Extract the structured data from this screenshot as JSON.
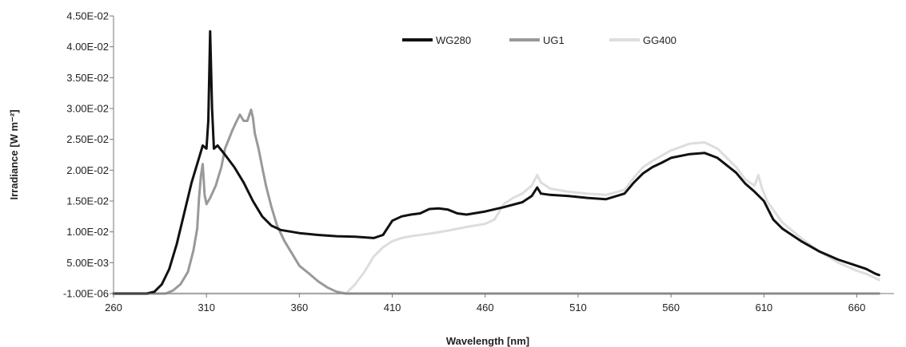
{
  "chart_data": {
    "type": "line",
    "title": "",
    "xlabel": "Wavelength [nm]",
    "ylabel": "Irradiance [W m⁻²]",
    "xlim": [
      260,
      680
    ],
    "ylim": [
      -1e-06,
      0.045
    ],
    "xticks": [
      260,
      310,
      360,
      410,
      460,
      510,
      560,
      610,
      660
    ],
    "xtick_labels": [
      "260",
      "310",
      "360",
      "410",
      "460",
      "510",
      "560",
      "610",
      "660"
    ],
    "yticks": [
      -1e-06,
      0.005,
      0.01,
      0.015,
      0.02,
      0.025,
      0.03,
      0.035,
      0.04,
      0.045
    ],
    "ytick_labels": [
      "-1.00E-06",
      "5.00E-03",
      "1.00E-02",
      "1.50E-02",
      "2.00E-02",
      "2.50E-02",
      "3.00E-02",
      "3.50E-02",
      "4.00E-02",
      "4.50E-02"
    ],
    "grid": false,
    "legend_position": "top-center",
    "series": [
      {
        "name": "WG280",
        "color": "#111111",
        "points": [
          [
            260,
            0
          ],
          [
            278,
            0
          ],
          [
            282,
            0.0003
          ],
          [
            286,
            0.0015
          ],
          [
            290,
            0.004
          ],
          [
            294,
            0.008
          ],
          [
            298,
            0.013
          ],
          [
            302,
            0.018
          ],
          [
            306,
            0.022
          ],
          [
            308,
            0.024
          ],
          [
            310,
            0.0235
          ],
          [
            311,
            0.028
          ],
          [
            312,
            0.0425
          ],
          [
            313,
            0.03
          ],
          [
            314,
            0.0235
          ],
          [
            316,
            0.024
          ],
          [
            320,
            0.0225
          ],
          [
            325,
            0.0205
          ],
          [
            330,
            0.018
          ],
          [
            335,
            0.015
          ],
          [
            340,
            0.0125
          ],
          [
            345,
            0.011
          ],
          [
            350,
            0.0103
          ],
          [
            360,
            0.0098
          ],
          [
            370,
            0.0095
          ],
          [
            380,
            0.0093
          ],
          [
            390,
            0.0092
          ],
          [
            400,
            0.009
          ],
          [
            405,
            0.0095
          ],
          [
            410,
            0.0118
          ],
          [
            415,
            0.0125
          ],
          [
            420,
            0.0128
          ],
          [
            425,
            0.013
          ],
          [
            430,
            0.0137
          ],
          [
            435,
            0.0138
          ],
          [
            440,
            0.0136
          ],
          [
            445,
            0.013
          ],
          [
            450,
            0.0128
          ],
          [
            460,
            0.0133
          ],
          [
            470,
            0.014
          ],
          [
            480,
            0.0148
          ],
          [
            485,
            0.0158
          ],
          [
            488,
            0.0172
          ],
          [
            490,
            0.0162
          ],
          [
            495,
            0.016
          ],
          [
            505,
            0.0158
          ],
          [
            515,
            0.0155
          ],
          [
            525,
            0.0153
          ],
          [
            535,
            0.0162
          ],
          [
            540,
            0.018
          ],
          [
            545,
            0.0195
          ],
          [
            550,
            0.0205
          ],
          [
            555,
            0.0212
          ],
          [
            560,
            0.022
          ],
          [
            570,
            0.0226
          ],
          [
            578,
            0.0228
          ],
          [
            585,
            0.022
          ],
          [
            595,
            0.0196
          ],
          [
            600,
            0.0178
          ],
          [
            605,
            0.0165
          ],
          [
            610,
            0.015
          ],
          [
            615,
            0.012
          ],
          [
            620,
            0.0105
          ],
          [
            630,
            0.0085
          ],
          [
            640,
            0.0068
          ],
          [
            650,
            0.0055
          ],
          [
            660,
            0.0045
          ],
          [
            665,
            0.004
          ],
          [
            670,
            0.0032
          ],
          [
            672,
            0.003
          ]
        ]
      },
      {
        "name": "UG1",
        "color": "#999999",
        "points": [
          [
            260,
            0
          ],
          [
            288,
            0
          ],
          [
            292,
            0.0005
          ],
          [
            296,
            0.0015
          ],
          [
            300,
            0.0035
          ],
          [
            303,
            0.007
          ],
          [
            305,
            0.0105
          ],
          [
            306,
            0.0155
          ],
          [
            307,
            0.019
          ],
          [
            308,
            0.021
          ],
          [
            309,
            0.016
          ],
          [
            310,
            0.0145
          ],
          [
            312,
            0.0155
          ],
          [
            315,
            0.0175
          ],
          [
            318,
            0.0205
          ],
          [
            320,
            0.0235
          ],
          [
            322,
            0.025
          ],
          [
            324,
            0.0265
          ],
          [
            326,
            0.0278
          ],
          [
            328,
            0.029
          ],
          [
            330,
            0.028
          ],
          [
            332,
            0.028
          ],
          [
            334,
            0.0298
          ],
          [
            335,
            0.0285
          ],
          [
            336,
            0.026
          ],
          [
            338,
            0.0235
          ],
          [
            340,
            0.0205
          ],
          [
            342,
            0.0175
          ],
          [
            345,
            0.014
          ],
          [
            348,
            0.011
          ],
          [
            352,
            0.0085
          ],
          [
            356,
            0.0065
          ],
          [
            360,
            0.0045
          ],
          [
            365,
            0.0033
          ],
          [
            370,
            0.002
          ],
          [
            375,
            0.001
          ],
          [
            380,
            0.0003
          ],
          [
            385,
            0
          ],
          [
            672,
            0
          ]
        ]
      },
      {
        "name": "GG400",
        "color": "#dddddd",
        "points": [
          [
            260,
            0
          ],
          [
            385,
            0
          ],
          [
            390,
            0.0015
          ],
          [
            395,
            0.0035
          ],
          [
            400,
            0.006
          ],
          [
            405,
            0.0075
          ],
          [
            410,
            0.0085
          ],
          [
            415,
            0.009
          ],
          [
            420,
            0.0093
          ],
          [
            430,
            0.0097
          ],
          [
            440,
            0.0102
          ],
          [
            450,
            0.0108
          ],
          [
            460,
            0.0113
          ],
          [
            465,
            0.012
          ],
          [
            470,
            0.0145
          ],
          [
            475,
            0.0155
          ],
          [
            480,
            0.0162
          ],
          [
            485,
            0.0175
          ],
          [
            488,
            0.0192
          ],
          [
            490,
            0.018
          ],
          [
            495,
            0.017
          ],
          [
            505,
            0.0165
          ],
          [
            515,
            0.0162
          ],
          [
            525,
            0.016
          ],
          [
            535,
            0.0168
          ],
          [
            540,
            0.0188
          ],
          [
            545,
            0.0205
          ],
          [
            550,
            0.0215
          ],
          [
            560,
            0.0232
          ],
          [
            570,
            0.0243
          ],
          [
            578,
            0.0245
          ],
          [
            585,
            0.0235
          ],
          [
            595,
            0.0205
          ],
          [
            600,
            0.0185
          ],
          [
            605,
            0.0175
          ],
          [
            607,
            0.0192
          ],
          [
            609,
            0.017
          ],
          [
            612,
            0.0148
          ],
          [
            620,
            0.0115
          ],
          [
            630,
            0.009
          ],
          [
            640,
            0.0068
          ],
          [
            650,
            0.005
          ],
          [
            660,
            0.0037
          ],
          [
            665,
            0.0032
          ],
          [
            670,
            0.0025
          ],
          [
            672,
            0.0022
          ]
        ]
      }
    ]
  }
}
